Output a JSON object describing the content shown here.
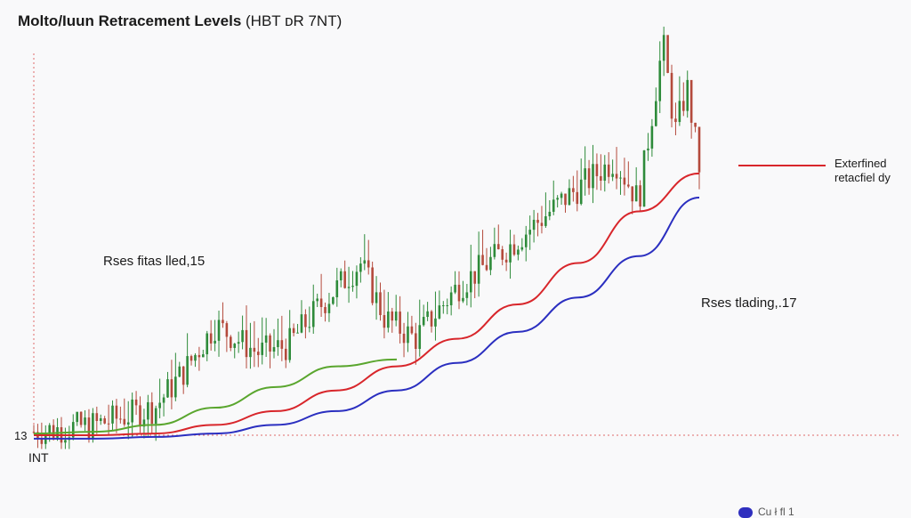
{
  "header": {
    "title": "Moltο/Iuun Retracement Levels",
    "subtitle": "(HBT ᴅR 7NT)"
  },
  "labels": {
    "left_annotation": "Rses fitas lled,15",
    "right_annotation": "Rses tlading,.17",
    "y_start_label": "13",
    "x_start_label": "INT",
    "bottom_legend_fragment": "Cu  ł    fl   1"
  },
  "legend": {
    "line1": "Exterfined",
    "line2": "retacfiel dy"
  },
  "colors": {
    "background": "#f9f9fa",
    "up_candle": "#2e8b3a",
    "down_candle": "#b44a3c",
    "red_line": "#d8262b",
    "blue_line": "#2b2fc0",
    "green_line": "#5aa62e",
    "guide": "#e06a6a"
  },
  "chart_data": {
    "type": "line",
    "title": "Moltο/Iuun Retracement Levels (HBT ᴅR 7NT)",
    "xlabel": "INT",
    "ylabel": "",
    "baseline_value": 13,
    "series": [
      {
        "name": "Exterfined retacfiel dy",
        "color": "#d8262b",
        "points": [
          [
            0,
            13.0
          ],
          [
            10,
            13.0
          ],
          [
            20,
            13.05
          ],
          [
            30,
            13.3
          ],
          [
            40,
            13.7
          ],
          [
            50,
            14.3
          ],
          [
            60,
            15.0
          ],
          [
            70,
            15.8
          ],
          [
            80,
            16.8
          ],
          [
            90,
            18.0
          ],
          [
            100,
            19.5
          ],
          [
            110,
            20.6
          ]
        ]
      },
      {
        "color": "#2b2fc0",
        "points": [
          [
            0,
            12.9
          ],
          [
            10,
            12.9
          ],
          [
            20,
            12.95
          ],
          [
            30,
            13.05
          ],
          [
            40,
            13.3
          ],
          [
            50,
            13.7
          ],
          [
            60,
            14.3
          ],
          [
            70,
            15.1
          ],
          [
            80,
            16.0
          ],
          [
            90,
            17.0
          ],
          [
            100,
            18.2
          ],
          [
            110,
            19.9
          ]
        ]
      },
      {
        "color": "#5aa62e",
        "points": [
          [
            0,
            13.05
          ],
          [
            10,
            13.1
          ],
          [
            20,
            13.3
          ],
          [
            30,
            13.8
          ],
          [
            40,
            14.4
          ],
          [
            50,
            15.0
          ],
          [
            60,
            15.2
          ]
        ]
      }
    ],
    "candles": {
      "up_color": "#2e8b3a",
      "down_color": "#b44a3c",
      "x": [
        0,
        10,
        20,
        25,
        30,
        37,
        42,
        47,
        54,
        58,
        63,
        70,
        78,
        88,
        96,
        100,
        104,
        106,
        108,
        110
      ],
      "close": [
        13.1,
        13.3,
        13.8,
        14.9,
        16.2,
        15.4,
        15.6,
        16.7,
        18.0,
        16.4,
        15.8,
        17.3,
        18.4,
        19.9,
        21.0,
        19.8,
        24.4,
        21.8,
        23.1,
        20.8
      ],
      "high": [
        13.3,
        13.8,
        14.5,
        15.8,
        17.9,
        16.4,
        17.6,
        18.3,
        19.2,
        17.6,
        16.9,
        18.4,
        20.2,
        21.6,
        22.5,
        22.2,
        25.2,
        23.2,
        24.0,
        21.8
      ]
    }
  }
}
